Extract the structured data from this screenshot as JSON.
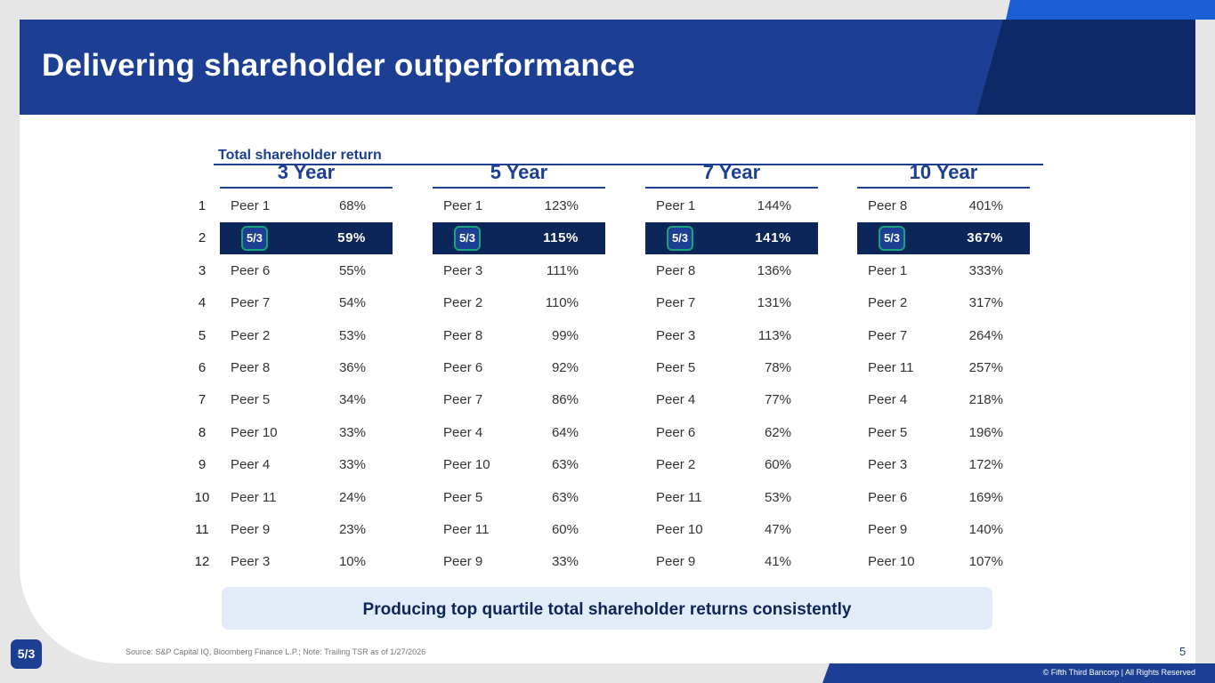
{
  "header": {
    "title": "Delivering shareholder outperformance"
  },
  "section": {
    "label": "Total shareholder return"
  },
  "brand": {
    "logo_text": "5/3",
    "primary_color": "#1c3f94",
    "highlight_color": "#0d2659",
    "accent_color": "#19a37a"
  },
  "ranks": [
    "1",
    "2",
    "3",
    "4",
    "5",
    "6",
    "7",
    "8",
    "9",
    "10",
    "11",
    "12"
  ],
  "columns": [
    {
      "heading": "3 Year",
      "rows": [
        {
          "name": "Peer 1",
          "value": "68%"
        },
        {
          "name": "",
          "value": "59%",
          "highlight": true
        },
        {
          "name": "Peer 6",
          "value": "55%"
        },
        {
          "name": "Peer 7",
          "value": "54%"
        },
        {
          "name": "Peer 2",
          "value": "53%"
        },
        {
          "name": "Peer 8",
          "value": "36%"
        },
        {
          "name": "Peer 5",
          "value": "34%"
        },
        {
          "name": "Peer 10",
          "value": "33%"
        },
        {
          "name": "Peer 4",
          "value": "33%"
        },
        {
          "name": "Peer 11",
          "value": "24%"
        },
        {
          "name": "Peer 9",
          "value": "23%"
        },
        {
          "name": "Peer 3",
          "value": "10%"
        }
      ]
    },
    {
      "heading": "5 Year",
      "rows": [
        {
          "name": "Peer 1",
          "value": "123%"
        },
        {
          "name": "",
          "value": "115%",
          "highlight": true
        },
        {
          "name": "Peer 3",
          "value": "111%"
        },
        {
          "name": "Peer 2",
          "value": "110%"
        },
        {
          "name": "Peer 8",
          "value": "99%"
        },
        {
          "name": "Peer 6",
          "value": "92%"
        },
        {
          "name": "Peer 7",
          "value": "86%"
        },
        {
          "name": "Peer 4",
          "value": "64%"
        },
        {
          "name": "Peer 10",
          "value": "63%"
        },
        {
          "name": "Peer 5",
          "value": "63%"
        },
        {
          "name": "Peer 11",
          "value": "60%"
        },
        {
          "name": "Peer 9",
          "value": "33%"
        }
      ]
    },
    {
      "heading": "7 Year",
      "rows": [
        {
          "name": "Peer 1",
          "value": "144%"
        },
        {
          "name": "",
          "value": "141%",
          "highlight": true
        },
        {
          "name": "Peer 8",
          "value": "136%"
        },
        {
          "name": "Peer 7",
          "value": "131%"
        },
        {
          "name": "Peer 3",
          "value": "113%"
        },
        {
          "name": "Peer 5",
          "value": "78%"
        },
        {
          "name": "Peer 4",
          "value": "77%"
        },
        {
          "name": "Peer 6",
          "value": "62%"
        },
        {
          "name": "Peer 2",
          "value": "60%"
        },
        {
          "name": "Peer 11",
          "value": "53%"
        },
        {
          "name": "Peer 10",
          "value": "47%"
        },
        {
          "name": "Peer 9",
          "value": "41%"
        }
      ]
    },
    {
      "heading": "10 Year",
      "rows": [
        {
          "name": "Peer 8",
          "value": "401%"
        },
        {
          "name": "",
          "value": "367%",
          "highlight": true
        },
        {
          "name": "Peer 1",
          "value": "333%"
        },
        {
          "name": "Peer 2",
          "value": "317%"
        },
        {
          "name": "Peer 7",
          "value": "264%"
        },
        {
          "name": "Peer 11",
          "value": "257%"
        },
        {
          "name": "Peer 4",
          "value": "218%"
        },
        {
          "name": "Peer 5",
          "value": "196%"
        },
        {
          "name": "Peer 3",
          "value": "172%"
        },
        {
          "name": "Peer 6",
          "value": "169%"
        },
        {
          "name": "Peer 9",
          "value": "140%"
        },
        {
          "name": "Peer 10",
          "value": "107%"
        }
      ]
    }
  ],
  "callout": {
    "text": "Producing top quartile total shareholder returns consistently"
  },
  "footer": {
    "source": "Source: S&P Capital IQ, Bloomberg Finance L.P.; Note: Trailing TSR as of 1/27/2026",
    "page_number": "5",
    "copyright": "© Fifth Third Bancorp | All Rights Reserved"
  }
}
